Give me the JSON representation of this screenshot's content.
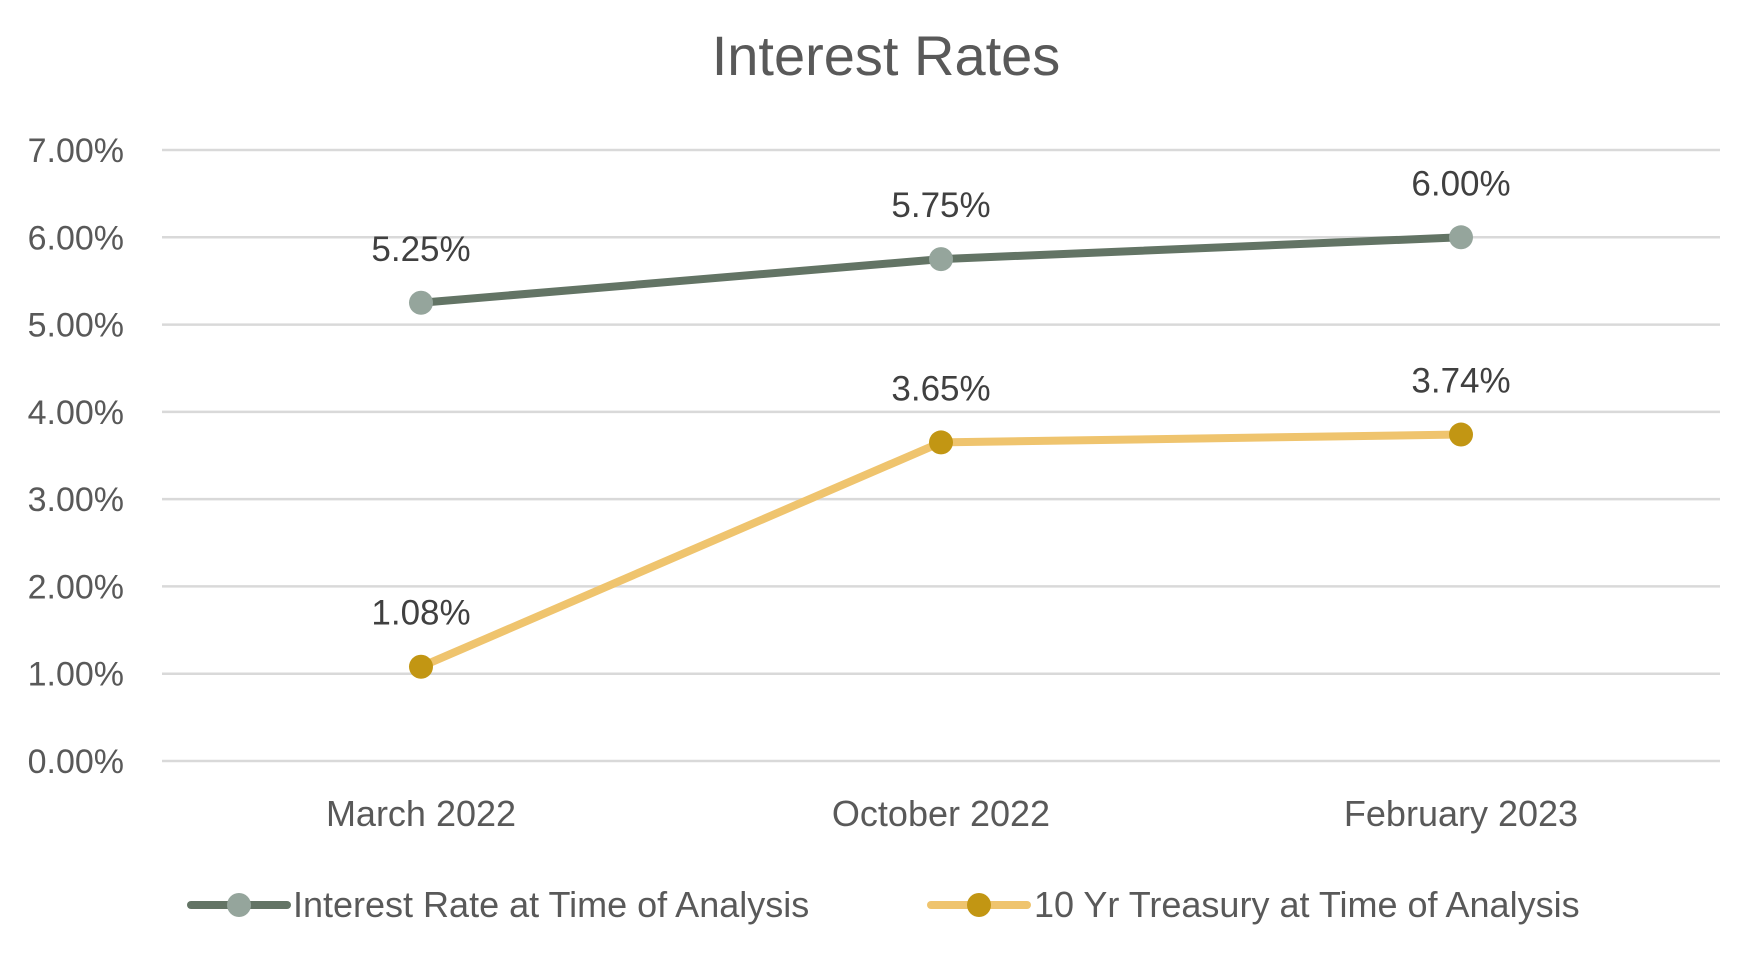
{
  "colors": {
    "interest_line": "#637465",
    "interest_marker": "#95a59c",
    "treasury_line": "#efc46e",
    "treasury_marker": "#c29613",
    "grid": "#d9d9d9",
    "text": "#595959",
    "data_label_text": "#404040"
  },
  "chart_data": {
    "type": "line",
    "title": "Interest Rates",
    "xlabel": "",
    "ylabel": "",
    "categories": [
      "March 2022",
      "October 2022",
      "February 2023"
    ],
    "ylim": [
      0,
      7
    ],
    "yticks": [
      "0.00%",
      "1.00%",
      "2.00%",
      "3.00%",
      "4.00%",
      "5.00%",
      "6.00%",
      "7.00%"
    ],
    "grid": true,
    "legend_position": "bottom",
    "series": [
      {
        "name": "Interest Rate at Time of Analysis",
        "values": [
          5.25,
          5.75,
          6.0
        ],
        "labels": [
          "5.25%",
          "5.75%",
          "6.00%"
        ]
      },
      {
        "name": "10 Yr Treasury at Time of Analysis",
        "values": [
          1.08,
          3.65,
          3.74
        ],
        "labels": [
          "1.08%",
          "3.65%",
          "3.74%"
        ]
      }
    ]
  }
}
